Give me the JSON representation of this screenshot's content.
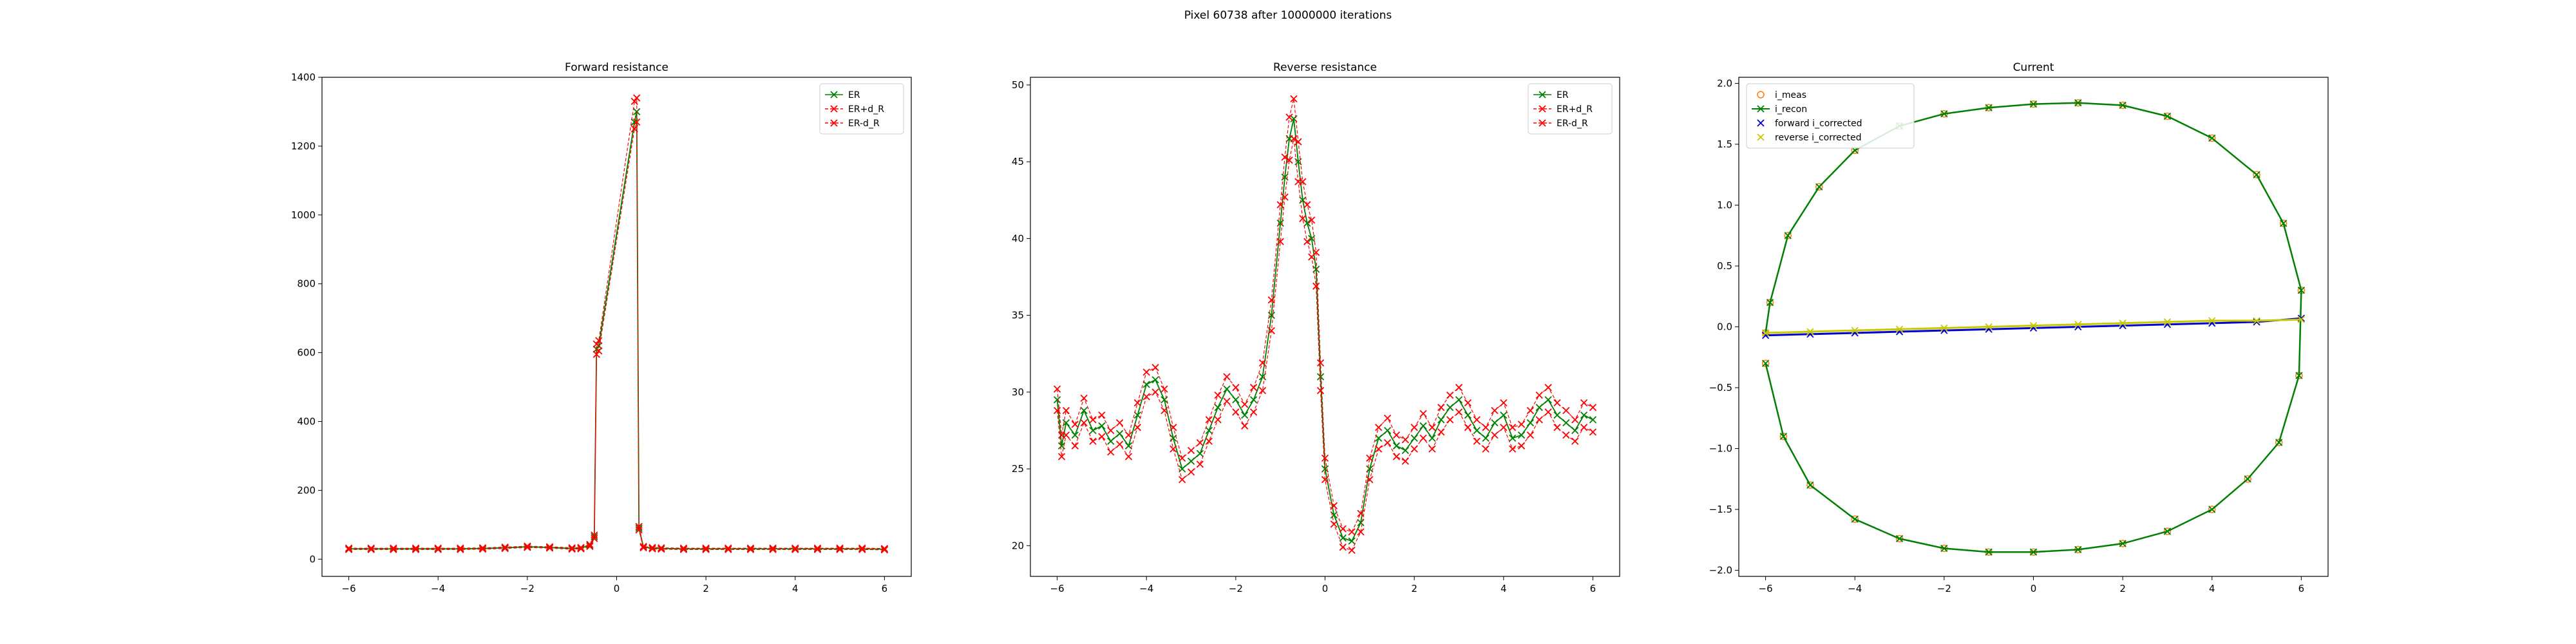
{
  "suptitle": "Pixel 60738 after 10000000 iterations",
  "chart_data": [
    {
      "type": "line",
      "title": "Forward resistance",
      "xlim": [
        -6.6,
        6.6
      ],
      "ylim": [
        -50,
        1400
      ],
      "xticks": [
        -6,
        -4,
        -2,
        0,
        2,
        4,
        6
      ],
      "yticks": [
        0,
        200,
        400,
        600,
        800,
        1000,
        1200,
        1400
      ],
      "legend": {
        "loc": "upper right",
        "entries": [
          "ER",
          "ER+d_R",
          "ER-d_R"
        ]
      },
      "series_colors": {
        "ER": "#008000",
        "ER+d_R": "#ff0000",
        "ER-d_R": "#ff0000"
      },
      "x": [
        -6.0,
        -5.5,
        -5.0,
        -4.5,
        -4.0,
        -3.5,
        -3.0,
        -2.5,
        -2.0,
        -1.5,
        -1.0,
        -0.8,
        -0.6,
        -0.5,
        -0.45,
        -0.4,
        0.4,
        0.45,
        0.5,
        0.6,
        0.8,
        1.0,
        1.5,
        2.0,
        2.5,
        3.0,
        3.5,
        4.0,
        4.5,
        5.0,
        5.5,
        6.0
      ],
      "series": [
        {
          "name": "ER",
          "values": [
            30,
            30,
            30,
            30,
            30,
            30,
            31,
            33,
            36,
            34,
            31,
            32,
            40,
            65,
            610,
            620,
            1270,
            1300,
            90,
            35,
            32,
            31,
            30,
            30,
            30,
            30,
            30,
            30,
            30,
            30,
            30,
            29
          ]
        },
        {
          "name": "ER+d_R",
          "values": [
            32,
            32,
            32,
            32,
            32,
            32,
            33,
            35,
            38,
            36,
            33,
            34,
            43,
            70,
            625,
            635,
            1330,
            1340,
            95,
            37,
            34,
            33,
            32,
            32,
            32,
            32,
            32,
            32,
            32,
            32,
            32,
            31
          ]
        },
        {
          "name": "ER-d_R",
          "values": [
            28,
            28,
            28,
            28,
            28,
            28,
            29,
            31,
            34,
            32,
            29,
            30,
            37,
            60,
            595,
            605,
            1250,
            1270,
            85,
            33,
            30,
            29,
            28,
            28,
            28,
            28,
            28,
            28,
            28,
            28,
            28,
            27
          ]
        }
      ]
    },
    {
      "type": "line",
      "title": "Reverse resistance",
      "xlim": [
        -6.6,
        6.6
      ],
      "ylim": [
        18,
        50.5
      ],
      "xticks": [
        -6,
        -4,
        -2,
        0,
        2,
        4,
        6
      ],
      "yticks": [
        20,
        25,
        30,
        35,
        40,
        45,
        50
      ],
      "legend": {
        "loc": "upper right",
        "entries": [
          "ER",
          "ER+d_R",
          "ER-d_R"
        ]
      },
      "series_colors": {
        "ER": "#008000",
        "ER+d_R": "#ff0000",
        "ER-d_R": "#ff0000"
      },
      "x": [
        -6.0,
        -5.9,
        -5.8,
        -5.6,
        -5.4,
        -5.2,
        -5.0,
        -4.8,
        -4.6,
        -4.4,
        -4.2,
        -4.0,
        -3.8,
        -3.6,
        -3.4,
        -3.2,
        -3.0,
        -2.8,
        -2.6,
        -2.4,
        -2.2,
        -2.0,
        -1.8,
        -1.6,
        -1.4,
        -1.2,
        -1.0,
        -0.9,
        -0.8,
        -0.7,
        -0.6,
        -0.5,
        -0.4,
        -0.3,
        -0.2,
        -0.1,
        0.0,
        0.2,
        0.4,
        0.6,
        0.8,
        1.0,
        1.2,
        1.4,
        1.6,
        1.8,
        2.0,
        2.2,
        2.4,
        2.6,
        2.8,
        3.0,
        3.2,
        3.4,
        3.6,
        3.8,
        4.0,
        4.2,
        4.4,
        4.6,
        4.8,
        5.0,
        5.2,
        5.4,
        5.6,
        5.8,
        6.0
      ],
      "series": [
        {
          "name": "ER",
          "values": [
            29.5,
            26.5,
            28.0,
            27.2,
            28.8,
            27.5,
            27.8,
            26.8,
            27.3,
            26.5,
            28.5,
            30.5,
            30.8,
            29.5,
            27.0,
            25.0,
            25.5,
            26.0,
            27.5,
            29.0,
            30.2,
            29.5,
            28.5,
            29.5,
            31.0,
            35.0,
            41.0,
            44.0,
            46.5,
            47.8,
            45.0,
            42.5,
            41.0,
            40.0,
            38.0,
            31.0,
            25.0,
            22.0,
            20.5,
            20.3,
            21.5,
            25.0,
            27.0,
            27.5,
            26.5,
            26.2,
            27.0,
            27.8,
            27.0,
            28.2,
            29.0,
            29.5,
            28.5,
            27.5,
            27.0,
            28.0,
            28.5,
            27.0,
            27.2,
            28.0,
            29.0,
            29.5,
            28.5,
            28.0,
            27.5,
            28.5,
            28.2
          ]
        },
        {
          "name": "ER+d_R",
          "values": [
            30.2,
            27.2,
            28.8,
            27.9,
            29.6,
            28.2,
            28.5,
            27.5,
            28.0,
            27.2,
            29.3,
            31.3,
            31.6,
            30.2,
            27.7,
            25.7,
            26.2,
            26.7,
            28.2,
            29.8,
            31.0,
            30.3,
            29.2,
            30.3,
            31.9,
            36.0,
            42.2,
            45.3,
            47.9,
            49.1,
            46.3,
            43.7,
            42.2,
            41.2,
            39.1,
            31.9,
            25.7,
            22.6,
            21.1,
            20.9,
            22.1,
            25.7,
            27.7,
            28.3,
            27.2,
            26.9,
            27.7,
            28.6,
            27.7,
            29.0,
            29.8,
            30.3,
            29.3,
            28.2,
            27.7,
            28.8,
            29.3,
            27.7,
            27.9,
            28.8,
            29.8,
            30.3,
            29.3,
            28.8,
            28.2,
            29.3,
            29.0
          ]
        },
        {
          "name": "ER-d_R",
          "values": [
            28.8,
            25.8,
            27.2,
            26.5,
            28.0,
            26.8,
            27.1,
            26.1,
            26.6,
            25.8,
            27.7,
            29.7,
            30.0,
            28.8,
            26.3,
            24.3,
            24.8,
            25.3,
            26.8,
            28.2,
            29.4,
            28.7,
            27.8,
            28.7,
            30.1,
            34.0,
            39.8,
            42.7,
            45.1,
            46.5,
            43.7,
            41.3,
            39.8,
            38.8,
            36.9,
            30.1,
            24.3,
            21.4,
            19.9,
            19.7,
            20.9,
            24.3,
            26.3,
            26.7,
            25.8,
            25.5,
            26.3,
            27.0,
            26.3,
            27.4,
            28.2,
            28.7,
            27.7,
            26.8,
            26.3,
            27.2,
            27.7,
            26.3,
            26.5,
            27.2,
            28.2,
            28.7,
            27.7,
            27.2,
            26.8,
            27.7,
            27.4
          ]
        }
      ]
    },
    {
      "type": "scatter",
      "title": "Current",
      "xlim": [
        -6.6,
        6.6
      ],
      "ylim": [
        -2.05,
        2.05
      ],
      "xticks": [
        -6,
        -4,
        -2,
        0,
        2,
        4,
        6
      ],
      "yticks": [
        -2.0,
        -1.5,
        -1.0,
        -0.5,
        0.0,
        0.5,
        1.0,
        1.5,
        2.0
      ],
      "legend": {
        "loc": "upper left",
        "entries": [
          "i_meas",
          "i_recon",
          "forward i_corrected",
          "reverse i_corrected"
        ]
      },
      "series_colors": {
        "i_meas": "#ff7f0e",
        "i_recon": "#008000",
        "forward i_corrected": "#0000cc",
        "reverse i_corrected": "#c8c800"
      },
      "series": [
        {
          "name": "i_meas",
          "x": [
            -6.0,
            -5.9,
            -5.5,
            -4.8,
            -4.0,
            -3.0,
            -2.0,
            -1.0,
            0.0,
            1.0,
            2.0,
            3.0,
            4.0,
            5.0,
            5.6,
            6.0,
            5.95,
            5.5,
            4.8,
            4.0,
            3.0,
            2.0,
            1.0,
            0.0,
            -1.0,
            -2.0,
            -3.0,
            -4.0,
            -5.0,
            -5.6,
            -6.0
          ],
          "y": [
            -0.05,
            0.2,
            0.75,
            1.15,
            1.45,
            1.65,
            1.75,
            1.8,
            1.83,
            1.84,
            1.82,
            1.73,
            1.55,
            1.25,
            0.85,
            0.3,
            -0.4,
            -0.95,
            -1.25,
            -1.5,
            -1.68,
            -1.78,
            -1.83,
            -1.85,
            -1.85,
            -1.82,
            -1.74,
            -1.58,
            -1.3,
            -0.9,
            -0.3
          ]
        },
        {
          "name": "i_recon",
          "x": [
            -6.0,
            -5.9,
            -5.5,
            -4.8,
            -4.0,
            -3.0,
            -2.0,
            -1.0,
            0.0,
            1.0,
            2.0,
            3.0,
            4.0,
            5.0,
            5.6,
            6.0,
            5.95,
            5.5,
            4.8,
            4.0,
            3.0,
            2.0,
            1.0,
            0.0,
            -1.0,
            -2.0,
            -3.0,
            -4.0,
            -5.0,
            -5.6,
            -6.0
          ],
          "y": [
            -0.05,
            0.2,
            0.75,
            1.15,
            1.45,
            1.65,
            1.75,
            1.8,
            1.83,
            1.84,
            1.82,
            1.73,
            1.55,
            1.25,
            0.85,
            0.3,
            -0.4,
            -0.95,
            -1.25,
            -1.5,
            -1.68,
            -1.78,
            -1.83,
            -1.85,
            -1.85,
            -1.82,
            -1.74,
            -1.58,
            -1.3,
            -0.9,
            -0.3
          ]
        },
        {
          "name": "forward i_corrected",
          "x": [
            -6.0,
            -5.0,
            -4.0,
            -3.0,
            -2.0,
            -1.0,
            0.0,
            1.0,
            2.0,
            3.0,
            4.0,
            5.0,
            6.0
          ],
          "y": [
            -0.07,
            -0.06,
            -0.05,
            -0.04,
            -0.03,
            -0.02,
            -0.01,
            0.0,
            0.01,
            0.02,
            0.03,
            0.04,
            0.07
          ]
        },
        {
          "name": "reverse i_corrected",
          "x": [
            -6.0,
            -5.0,
            -4.0,
            -3.0,
            -2.0,
            -1.0,
            0.0,
            1.0,
            2.0,
            3.0,
            4.0,
            5.0,
            6.0
          ],
          "y": [
            -0.05,
            -0.04,
            -0.03,
            -0.02,
            -0.01,
            0.0,
            0.01,
            0.02,
            0.03,
            0.04,
            0.05,
            0.05,
            0.06
          ]
        }
      ]
    }
  ]
}
